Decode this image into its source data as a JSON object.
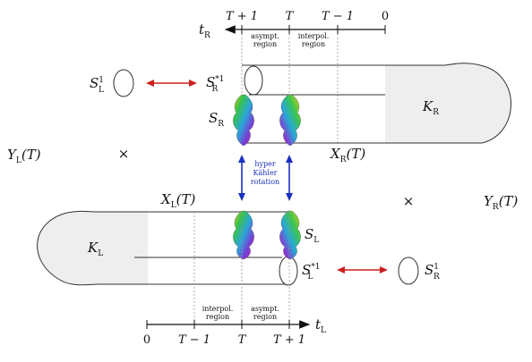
{
  "top_axis": {
    "var": "t",
    "sub": "R",
    "ticks": [
      "T + 1",
      "T",
      "T − 1",
      "0"
    ],
    "region_asympt": [
      "asympt.",
      "region"
    ],
    "region_interpol": [
      "interpol.",
      "region"
    ]
  },
  "bottom_axis": {
    "var": "t",
    "sub": "L",
    "ticks": [
      "0",
      "T − 1",
      "T",
      "T + 1"
    ],
    "region_interpol": [
      "interpol.",
      "region"
    ],
    "region_asympt": [
      "asympt.",
      "region"
    ]
  },
  "labels": {
    "S1L_main": "S",
    "S1L_sup": "1",
    "S1L_sub": "L",
    "SR_star_main": "S",
    "SR_star_sup": "*1",
    "SR_star_sub": "R",
    "SR_main": "S",
    "SR_sub": "R",
    "KR_main": "K",
    "KR_sub": "R",
    "XR_main": "X",
    "XR_sub": "R",
    "XR_arg": "(T)",
    "YL_main": "Y",
    "YL_sub": "L",
    "YL_arg": "(T)",
    "times_left": "×",
    "times_right": "×",
    "hyper_lines": [
      "hyper",
      "Kähler",
      "rotation"
    ],
    "XL_main": "X",
    "XL_sub": "L",
    "XL_arg": "(T)",
    "YR_main": "Y",
    "YR_sub": "R",
    "YR_arg": "(T)",
    "KL_main": "K",
    "KL_sub": "L",
    "SL_main": "S",
    "SL_sub": "L",
    "SL_star_main": "S",
    "SL_star_sup": "*1",
    "SL_star_sub": "L",
    "S1R_main": "S",
    "S1R_sup": "1",
    "S1R_sub": "R"
  },
  "colors": {
    "red_arrow": "#cc1f1f",
    "blue_arrow": "#1a2fbf",
    "shade": "#eeeeee",
    "line": "#333333"
  }
}
